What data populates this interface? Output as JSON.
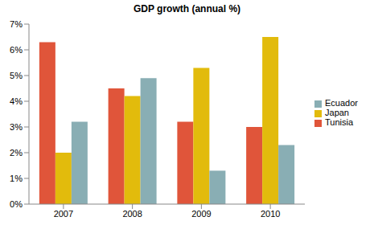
{
  "chart_data": {
    "type": "bar",
    "title": "GDP growth (annual %)",
    "categories": [
      "2007",
      "2008",
      "2009",
      "2010"
    ],
    "series": [
      {
        "name": "Tunisia",
        "color": "#e0553a",
        "values": [
          6.3,
          4.5,
          3.2,
          3.0
        ]
      },
      {
        "name": "Japan",
        "color": "#e2bb0c",
        "values": [
          2.0,
          4.2,
          5.3,
          6.5
        ]
      },
      {
        "name": "Ecuador",
        "color": "#89aeb4",
        "values": [
          3.2,
          4.9,
          1.3,
          2.3
        ]
      }
    ],
    "ylim": [
      0,
      7
    ],
    "yticks": [
      {
        "value": 0,
        "label": "0%"
      },
      {
        "value": 1,
        "label": "1%"
      },
      {
        "value": 2,
        "label": "2%"
      },
      {
        "value": 3,
        "label": "3%"
      },
      {
        "value": 4,
        "label": "4%"
      },
      {
        "value": 5,
        "label": "5%"
      },
      {
        "value": 6,
        "label": "6%"
      },
      {
        "value": 7,
        "label": "7%"
      }
    ],
    "grid": false,
    "legend": "right"
  }
}
